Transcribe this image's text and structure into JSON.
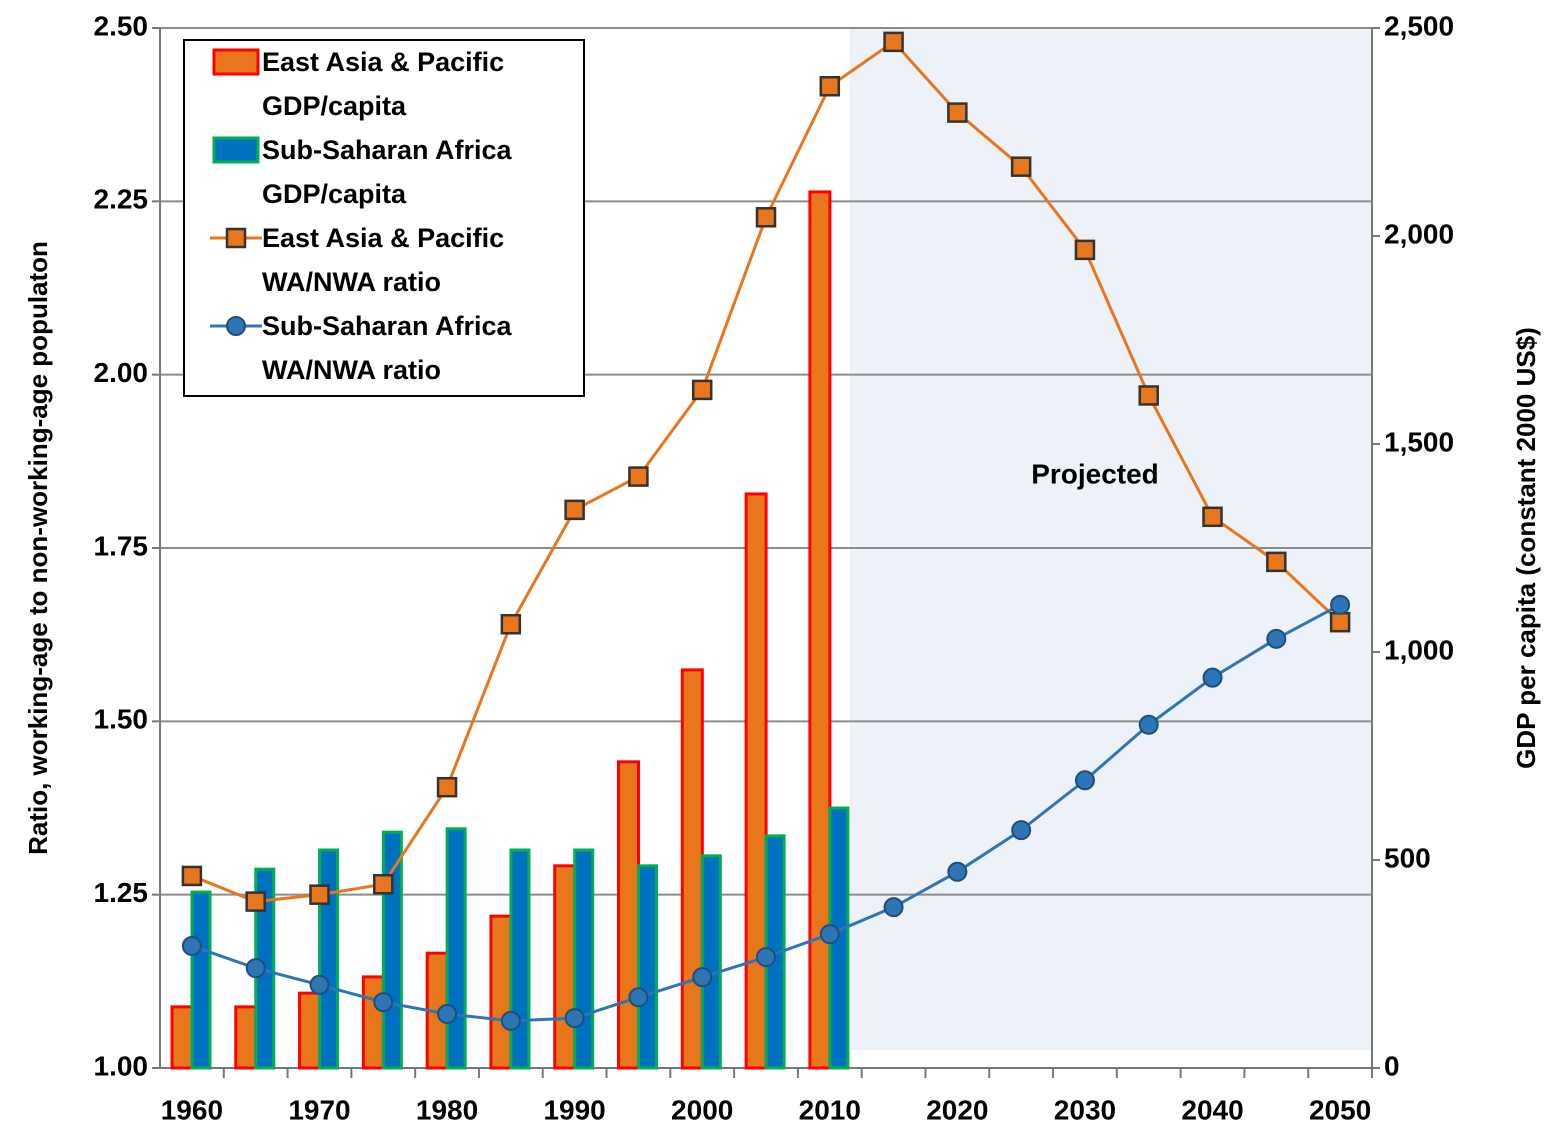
{
  "chart_data": {
    "type": "combo",
    "categories": [
      "1960",
      null,
      "1970",
      null,
      "1980",
      null,
      "1990",
      null,
      "2000",
      null,
      "2010",
      null,
      "2020",
      null,
      "2030",
      null,
      "2040",
      null,
      "2050"
    ],
    "series": [
      {
        "name": "East Asia & Pacific GDP/capita",
        "type": "bar",
        "axis": "y2",
        "color": "#e8761c",
        "edge": "#ff0000",
        "values": [
          147,
          147,
          180,
          219,
          276,
          365,
          486,
          736,
          957,
          1380,
          2106,
          null,
          null,
          null,
          null,
          null,
          null,
          null,
          null
        ]
      },
      {
        "name": "Sub-Saharan Africa GDP/capita",
        "type": "bar",
        "axis": "y2",
        "color": "#0070c0",
        "edge": "#00b050",
        "values": [
          423,
          478,
          524,
          567,
          575,
          524,
          524,
          486,
          510,
          558,
          625,
          null,
          null,
          null,
          null,
          null,
          null,
          null,
          null
        ]
      },
      {
        "name": "East Asia & Pacific WA/NWA ratio",
        "type": "line",
        "marker": "square",
        "color": "#e8761c",
        "values": [
          1.277,
          1.24,
          1.25,
          1.265,
          1.405,
          1.64,
          1.805,
          1.853,
          1.978,
          2.227,
          2.416,
          2.48,
          2.378,
          2.3,
          2.18,
          1.97,
          1.795,
          1.73,
          1.643
        ]
      },
      {
        "name": "Sub-Saharan Africa WA/NWA ratio",
        "type": "line",
        "marker": "circle",
        "color": "#2e75b6",
        "values": [
          1.176,
          1.144,
          1.12,
          1.095,
          1.078,
          1.068,
          1.072,
          1.102,
          1.131,
          1.16,
          1.193,
          1.232,
          1.283,
          1.343,
          1.415,
          1.495,
          1.563,
          1.619,
          1.668
        ]
      }
    ],
    "ylabel": "Ratio, working-age to non-working-age populaton",
    "y2label": "GDP per capita (constant 2000 US$)",
    "ylim": [
      1,
      2.5
    ],
    "yticks": [
      {
        "value": 1,
        "label": "1.00"
      },
      {
        "value": 1.25,
        "label": "1.25"
      },
      {
        "value": 1.5,
        "label": "1.50"
      },
      {
        "value": 1.75,
        "label": "1.75"
      },
      {
        "value": 2,
        "label": "2.00"
      },
      {
        "value": 2.25,
        "label": "2.25"
      },
      {
        "value": 2.5,
        "label": "2.50"
      }
    ],
    "y2lim": [
      0,
      2500
    ],
    "y2ticks": [
      0,
      500,
      {
        "value": 1000,
        "label": "1,000"
      },
      {
        "value": 1500,
        "label": "1,500"
      },
      {
        "value": 2000,
        "label": "2,000"
      },
      {
        "value": 2500,
        "label": "2,500"
      }
    ],
    "annotation": "Projected",
    "grid": true,
    "legend": "upper left"
  }
}
